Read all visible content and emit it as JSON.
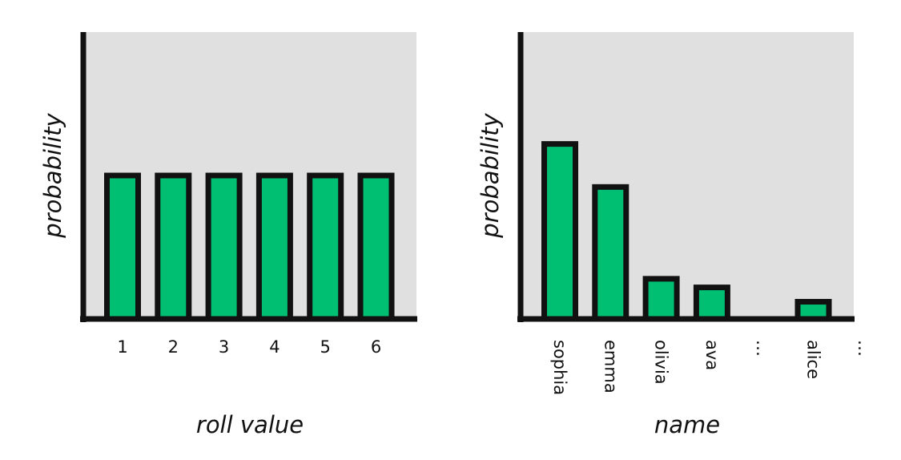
{
  "charts": [
    {
      "chart_data": {
        "type": "bar",
        "categories": [
          "1",
          "2",
          "3",
          "4",
          "5",
          "6"
        ],
        "values": [
          1,
          1,
          1,
          1,
          1,
          1
        ],
        "ylim": [
          0,
          2
        ],
        "xlabel": "roll value",
        "ylabel": "probability",
        "title": ""
      }
    },
    {
      "chart_data": {
        "type": "bar",
        "categories": [
          "sophia",
          "emma",
          "olivia",
          "ava",
          "…",
          "alice",
          "…"
        ],
        "values": [
          1.22,
          0.92,
          0.28,
          0.22,
          null,
          0.12,
          null
        ],
        "ylim": [
          0,
          2
        ],
        "xlabel": "name",
        "ylabel": "probability",
        "title": ""
      }
    }
  ],
  "colors": {
    "bar_fill": "#00bf72",
    "bar_stroke": "#111111",
    "plot_bg": "#dfe0df",
    "axis": "#111111"
  }
}
